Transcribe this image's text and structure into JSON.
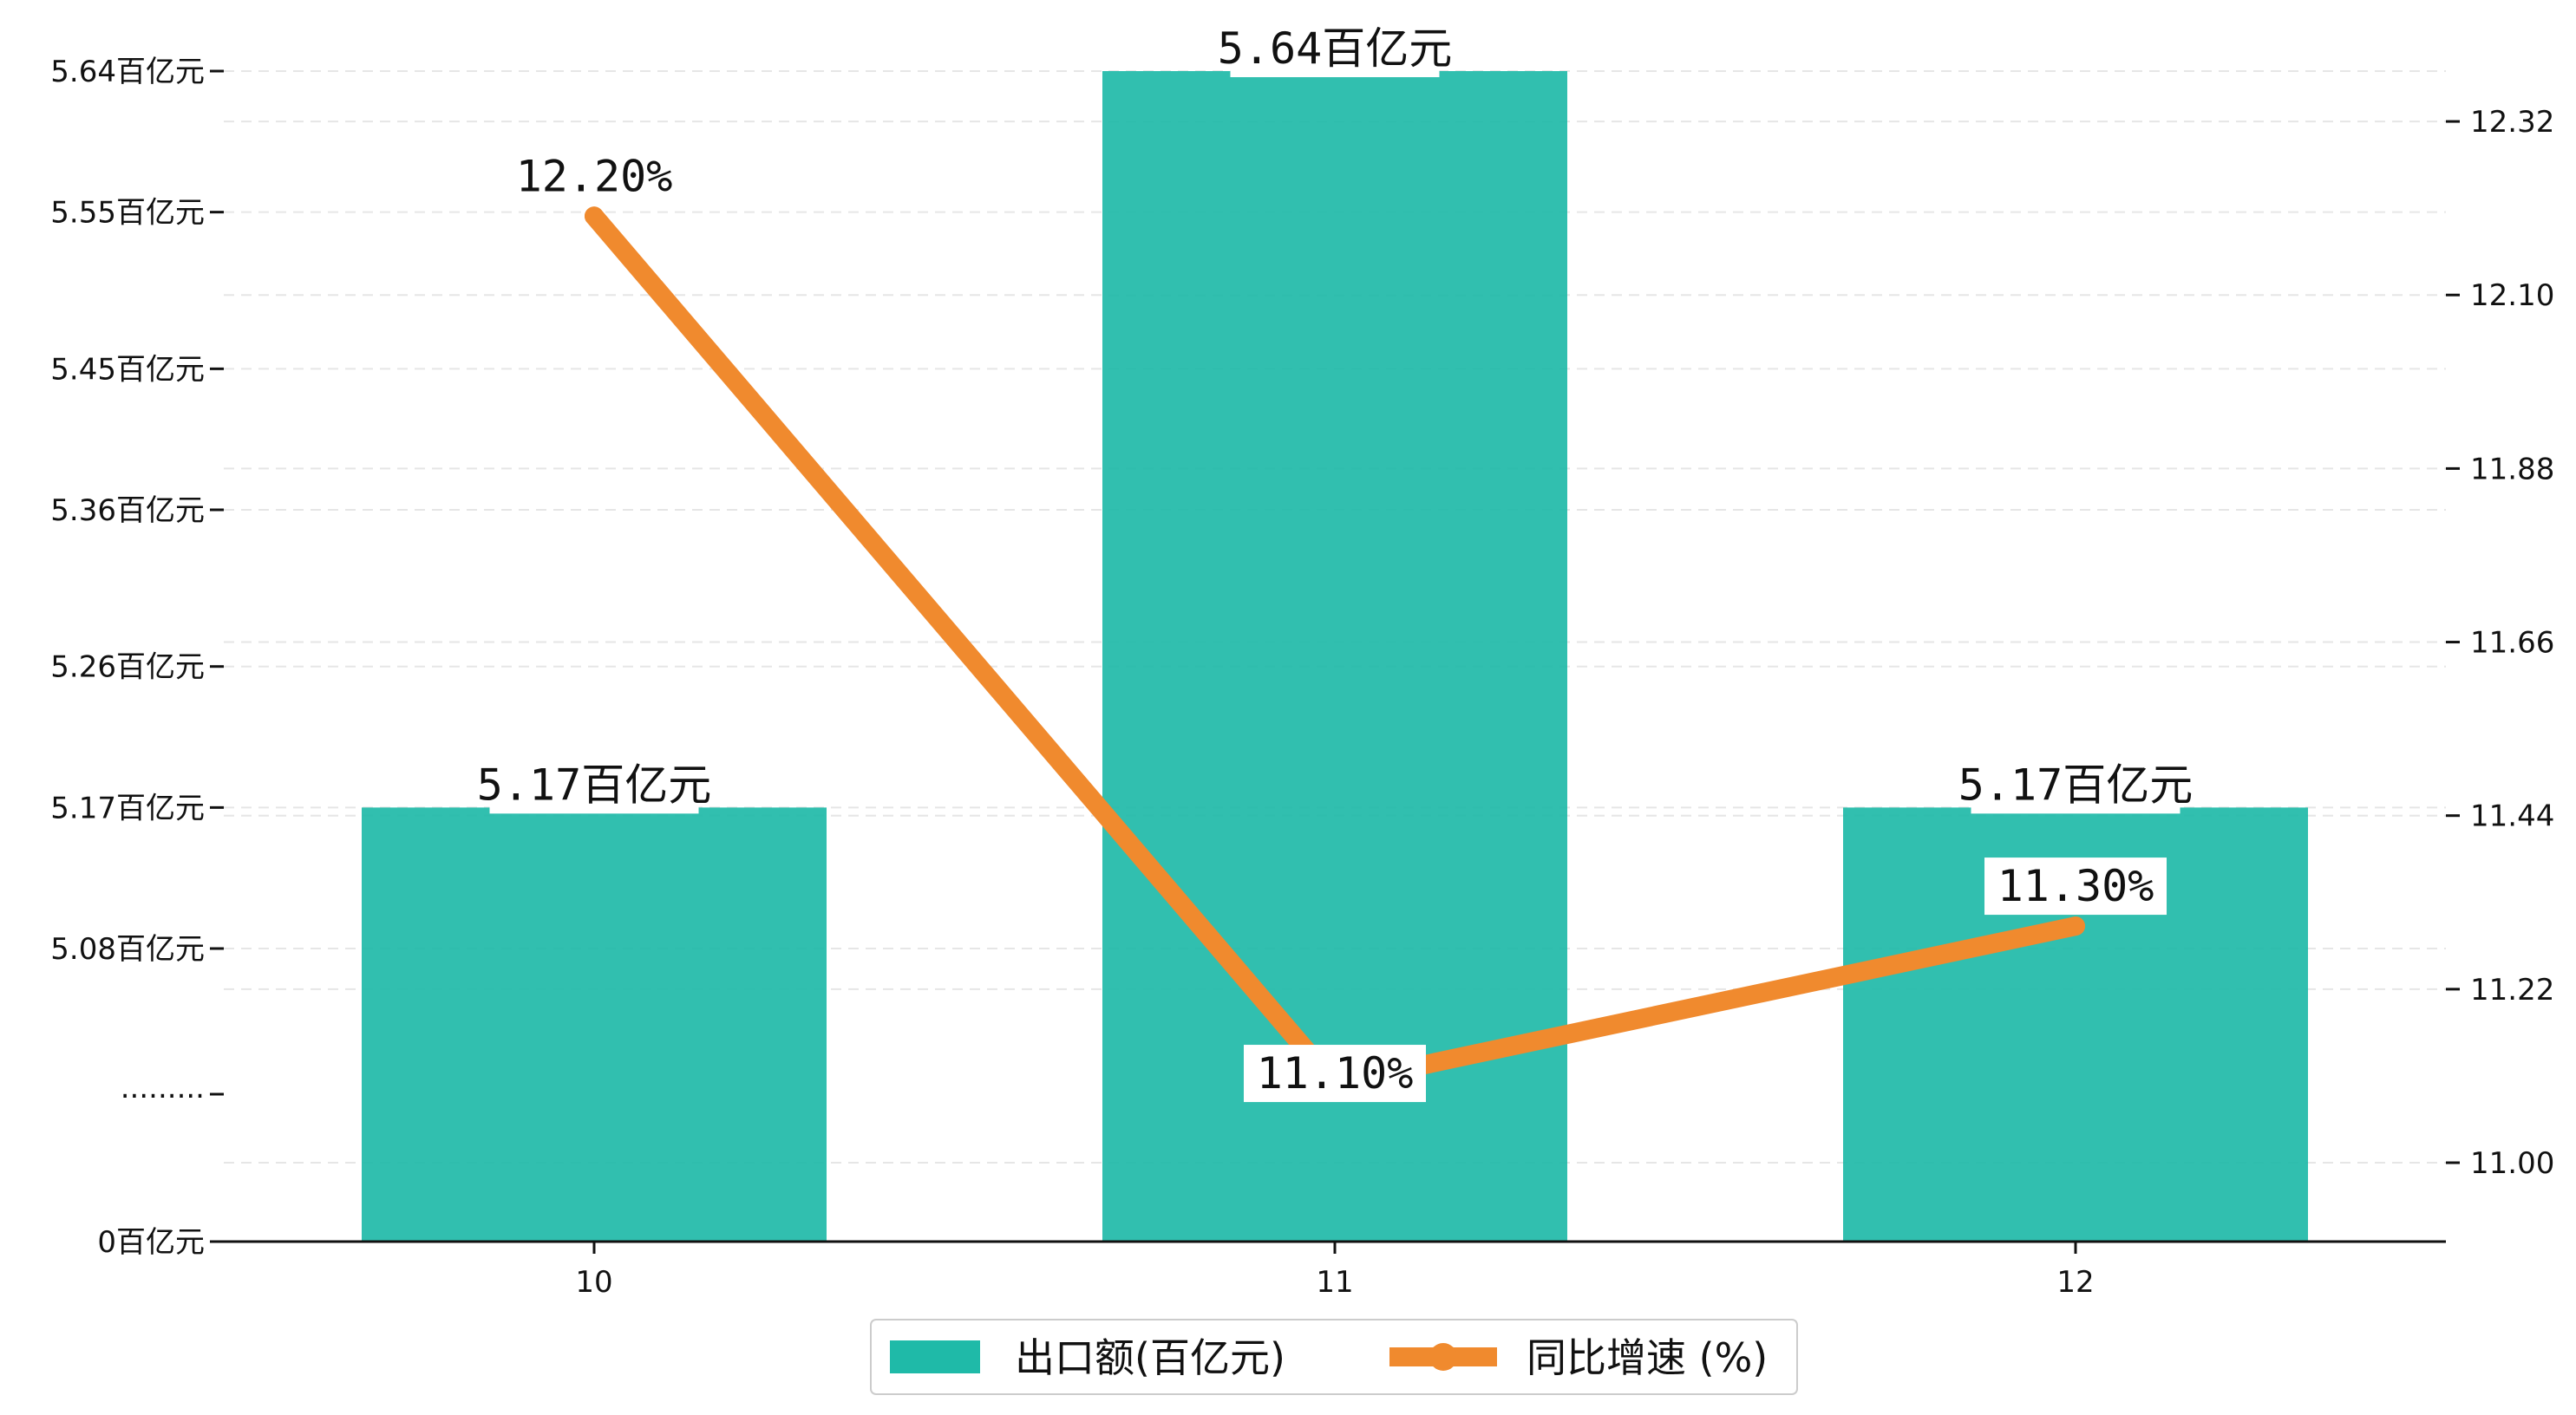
{
  "chart_data": {
    "type": "bar",
    "categories": [
      "10",
      "11",
      "12"
    ],
    "series": [
      {
        "name": "出口额(百亿元)",
        "type": "bar",
        "axis": "left",
        "values": [
          5.17,
          5.64,
          5.17
        ],
        "labels": [
          "5.17百亿元",
          "5.64百亿元",
          "5.17百亿元"
        ],
        "color": "#1fbaa8"
      },
      {
        "name": "同比增速 (%)",
        "type": "line",
        "axis": "right",
        "values": [
          12.2,
          11.1,
          11.3
        ],
        "labels": [
          "12.20%",
          "11.10%",
          "11.30%"
        ],
        "color": "#f08a2e"
      }
    ],
    "left_axis": {
      "broken": true,
      "break_label": ".........",
      "ticks": [
        {
          "value": 0,
          "label": "0百亿元"
        },
        {
          "value": 5.08,
          "label": "5.08百亿元"
        },
        {
          "value": 5.17,
          "label": "5.17百亿元"
        },
        {
          "value": 5.26,
          "label": "5.26百亿元"
        },
        {
          "value": 5.36,
          "label": "5.36百亿元"
        },
        {
          "value": 5.45,
          "label": "5.45百亿元"
        },
        {
          "value": 5.55,
          "label": "5.55百亿元"
        },
        {
          "value": 5.64,
          "label": "5.64百亿元"
        }
      ]
    },
    "right_axis": {
      "ylim": [
        10.9,
        12.43
      ],
      "ticks": [
        {
          "value": 11.0,
          "label": "11.00"
        },
        {
          "value": 11.22,
          "label": "11.22"
        },
        {
          "value": 11.44,
          "label": "11.44"
        },
        {
          "value": 11.66,
          "label": "11.66"
        },
        {
          "value": 11.88,
          "label": "11.88"
        },
        {
          "value": 12.1,
          "label": "12.10"
        },
        {
          "value": 12.32,
          "label": "12.32"
        }
      ]
    },
    "grid": true,
    "legend_position": "bottom-center"
  }
}
